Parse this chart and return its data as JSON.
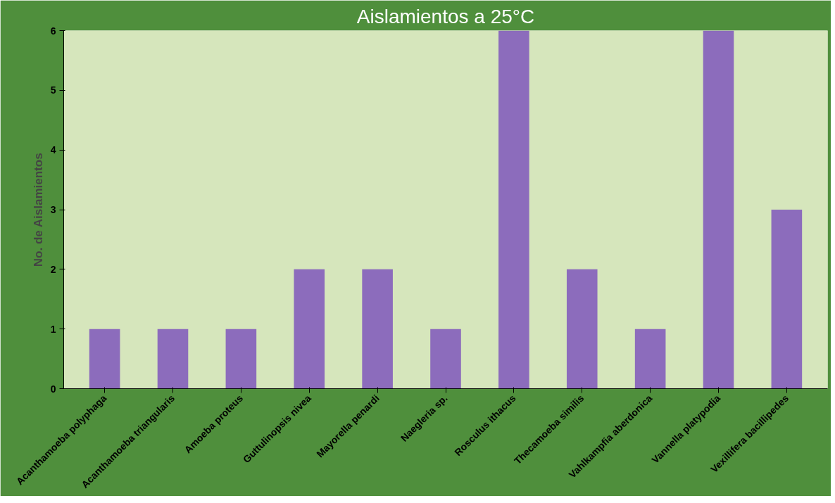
{
  "chart_data": {
    "type": "bar",
    "title": "Aislamientos a 25°C",
    "ylabel": "No. de Aislamientos",
    "categories": [
      "Acanthamoeba polyphaga",
      "Acanthamoeba triangularis",
      "Amoeba proteus",
      "Guttulinopsis nivea",
      "Mayorella penardi",
      "Naegleria sp.",
      "Rosculus ithacus",
      "Thecamoeba similis",
      "Vahlkampfia aberdonica",
      "Vannella platypodia",
      "Vexillifera bacillipedes"
    ],
    "values": [
      1,
      1,
      1,
      2,
      2,
      1,
      6,
      2,
      1,
      6,
      3
    ],
    "color": "#8c6cbc",
    "ylim": [
      0,
      6
    ],
    "yticks": [
      0,
      1,
      2,
      3,
      4,
      5,
      6
    ],
    "grid": false
  }
}
